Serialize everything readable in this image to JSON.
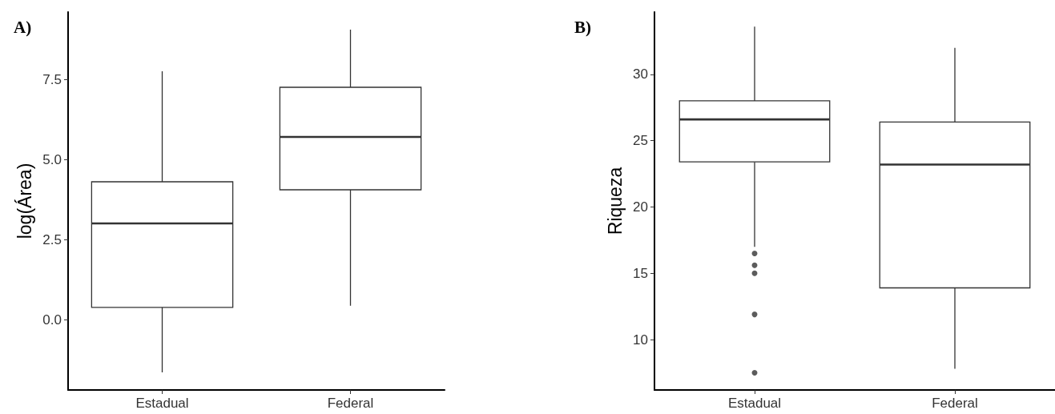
{
  "chart_data": [
    {
      "type": "box",
      "title": "A)",
      "ylabel": "log(Área)",
      "categories": [
        "Estadual",
        "Federal"
      ],
      "color": "#333333",
      "grid": false,
      "boxes": [
        {
          "low": -1.65,
          "q1": 0.38,
          "median": 3.0,
          "q3": 4.3,
          "high": 7.75
        },
        {
          "low": 0.43,
          "q1": 4.05,
          "median": 5.7,
          "q3": 7.25,
          "high": 9.05
        }
      ],
      "ylim": [
        -2.2,
        9.6
      ],
      "yticks": [
        {
          "value": 0,
          "label": "0.0"
        },
        {
          "value": 2.5,
          "label": "2.5"
        },
        {
          "value": 5,
          "label": "5.0"
        },
        {
          "value": 7.5,
          "label": "7.5"
        }
      ]
    },
    {
      "type": "box",
      "title": "B)",
      "ylabel": "Riqueza",
      "categories": [
        "Estadual",
        "Federal"
      ],
      "color": "#333333",
      "grid": false,
      "boxes": [
        {
          "low": 17.0,
          "q1": 23.4,
          "median": 26.6,
          "q3": 28.0,
          "high": 33.6,
          "outliers": [
            16.5,
            15.6,
            15.0,
            11.9,
            7.5
          ]
        },
        {
          "low": 7.8,
          "q1": 13.9,
          "median": 23.2,
          "q3": 26.4,
          "high": 32.0
        }
      ],
      "ylim": [
        6.2,
        34.7
      ],
      "yticks": [
        10,
        15,
        20,
        25,
        30
      ]
    }
  ]
}
